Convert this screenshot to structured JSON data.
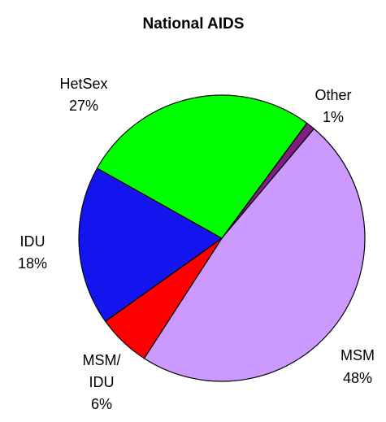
{
  "chart_data": {
    "type": "pie",
    "title": "National AIDS",
    "categories": [
      "Other",
      "MSM",
      "MSM/IDU",
      "IDU",
      "HetSex"
    ],
    "values": [
      1,
      48,
      6,
      18,
      27
    ],
    "value_labels": [
      "1%",
      "48%",
      "6%",
      "18%",
      "27%"
    ],
    "colors": [
      "#7f1f7f",
      "#cc99ff",
      "#ff0000",
      "#1414ee",
      "#00ff00"
    ]
  }
}
